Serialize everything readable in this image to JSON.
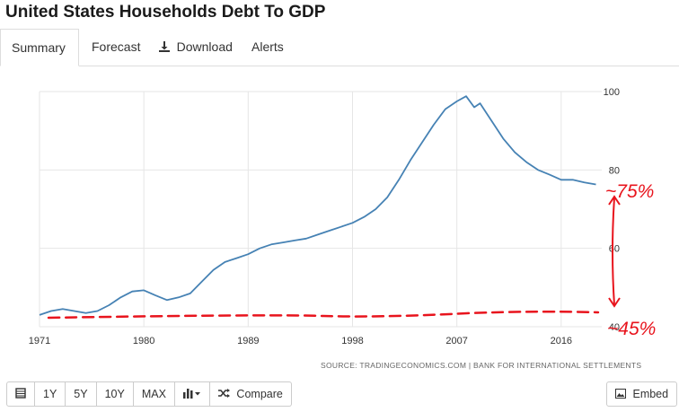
{
  "title": "United States Households Debt To GDP",
  "tabs": {
    "summary": "Summary",
    "forecast": "Forecast",
    "download": "Download",
    "alerts": "Alerts"
  },
  "source": "SOURCE: TRADINGECONOMICS.COM  |  BANK FOR INTERNATIONAL SETTLEMENTS",
  "toolbar": {
    "y1": "1Y",
    "y5": "5Y",
    "y10": "10Y",
    "max": "MAX",
    "compare": "Compare",
    "embed": "Embed"
  },
  "icons": {
    "calendar": "calendar-icon",
    "download": "download-icon",
    "chart_type": "bar-chart-icon",
    "compare": "shuffle-icon",
    "embed": "image-icon"
  },
  "colors": {
    "line": "#4682b4",
    "annotation": "#e8141d",
    "grid": "#e6e6e6"
  },
  "annotations": {
    "high": "~75%",
    "low": "~45%"
  },
  "chart_data": {
    "type": "line",
    "title": "",
    "xlabel": "",
    "ylabel": "",
    "xlim": [
      1971,
      2019.5
    ],
    "ylim": [
      40,
      100
    ],
    "x_ticks": [
      1971,
      1980,
      1989,
      1998,
      2007,
      2016
    ],
    "y_ticks": [
      40,
      60,
      80,
      100
    ],
    "grid": true,
    "series": [
      {
        "values": [
          [
            1971,
            43.0
          ],
          [
            1972,
            44.0
          ],
          [
            1973,
            44.5
          ],
          [
            1974,
            44.0
          ],
          [
            1975,
            43.5
          ],
          [
            1976,
            44.0
          ],
          [
            1977,
            45.5
          ],
          [
            1978,
            47.5
          ],
          [
            1979,
            49.0
          ],
          [
            1980,
            49.3
          ],
          [
            1981,
            48.0
          ],
          [
            1982,
            46.8
          ],
          [
            1983,
            47.5
          ],
          [
            1984,
            48.5
          ],
          [
            1985,
            51.5
          ],
          [
            1986,
            54.5
          ],
          [
            1987,
            56.5
          ],
          [
            1988,
            57.5
          ],
          [
            1989,
            58.5
          ],
          [
            1990,
            60.0
          ],
          [
            1991,
            61.0
          ],
          [
            1992,
            61.5
          ],
          [
            1993,
            62.0
          ],
          [
            1994,
            62.5
          ],
          [
            1995,
            63.5
          ],
          [
            1996,
            64.5
          ],
          [
            1997,
            65.5
          ],
          [
            1998,
            66.5
          ],
          [
            1999,
            68.0
          ],
          [
            2000,
            70.0
          ],
          [
            2001,
            73.0
          ],
          [
            2002,
            77.5
          ],
          [
            2003,
            82.5
          ],
          [
            2004,
            87.0
          ],
          [
            2005,
            91.5
          ],
          [
            2006,
            95.5
          ],
          [
            2007,
            97.5
          ],
          [
            2007.8,
            98.8
          ],
          [
            2008.5,
            96.0
          ],
          [
            2009,
            97.0
          ],
          [
            2010,
            92.5
          ],
          [
            2011,
            88.0
          ],
          [
            2012,
            84.5
          ],
          [
            2013,
            82.0
          ],
          [
            2014,
            80.0
          ],
          [
            2015,
            78.8
          ],
          [
            2016,
            77.5
          ],
          [
            2017,
            77.5
          ],
          [
            2018,
            76.8
          ],
          [
            2019,
            76.3
          ]
        ]
      }
    ]
  }
}
